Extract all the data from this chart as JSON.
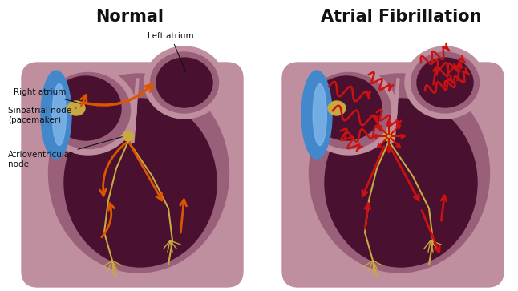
{
  "title_left": "Normal",
  "title_right": "Atrial Fibrillation",
  "label_left_atrium": "Left atrium",
  "label_right_atrium": "Right atrium",
  "label_sa_node": "Sinoatrial node\n(pacemaker)",
  "label_av_node": "Atrioventricular\nnode",
  "bg_color": "#ffffff",
  "heart_outer_color": "#bf8fa0",
  "heart_mid_color": "#9a607a",
  "heart_inner_color": "#6b2545",
  "heart_dark_color": "#4a1030",
  "atrium_left_color": "#7a3558",
  "atrium_right_color": "#5a1e3a",
  "blue_color": "#4488cc",
  "blue_light": "#88bbee",
  "sa_node_color": "#c8a840",
  "av_node_color": "#c8a840",
  "arrow_normal_color": "#dd5500",
  "arrow_af_color": "#cc1111",
  "line_color": "#c8a840",
  "text_color": "#111111",
  "title_fontsize": 15,
  "label_fontsize": 7.5
}
